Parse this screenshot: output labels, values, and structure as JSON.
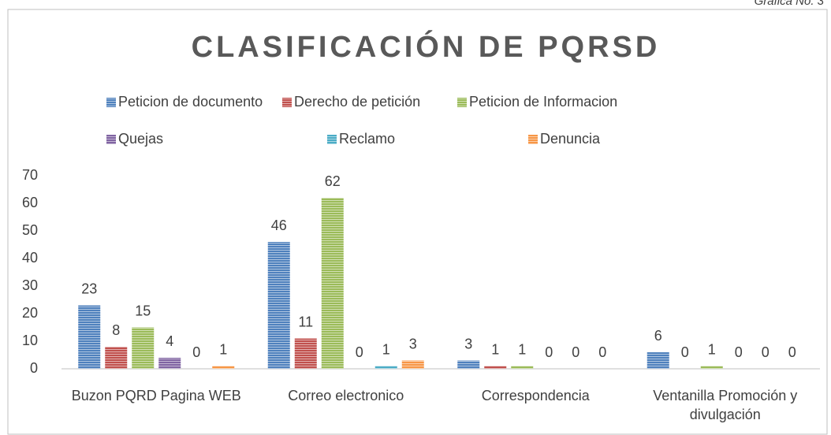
{
  "caption": "Grafica No. 3",
  "chart_data": {
    "type": "bar",
    "title": "CLASIFICACIÓN DE PQRSD",
    "categories": [
      "Buzon PQRD Pagina WEB",
      "Correo electronico",
      "Correspondencia",
      "Ventanilla Promoción y divulgación"
    ],
    "series": [
      {
        "name": "Peticion de documento",
        "color": "#4f81bd",
        "values": [
          23,
          46,
          3,
          6
        ]
      },
      {
        "name": "Derecho de petición",
        "color": "#c0504d",
        "values": [
          8,
          11,
          1,
          0
        ]
      },
      {
        "name": "Peticion de Informacion",
        "color": "#9bbb59",
        "values": [
          15,
          62,
          1,
          1
        ]
      },
      {
        "name": "Quejas",
        "color": "#8064a2",
        "values": [
          4,
          0,
          0,
          0
        ]
      },
      {
        "name": "Reclamo",
        "color": "#4bacc6",
        "values": [
          0,
          1,
          0,
          0
        ]
      },
      {
        "name": "Denuncia",
        "color": "#f79646",
        "values": [
          1,
          3,
          0,
          0
        ]
      }
    ],
    "ylim": [
      0,
      70
    ],
    "yticks": [
      0,
      10,
      20,
      30,
      40,
      50,
      60,
      70
    ],
    "grid": false,
    "legend": "top"
  }
}
